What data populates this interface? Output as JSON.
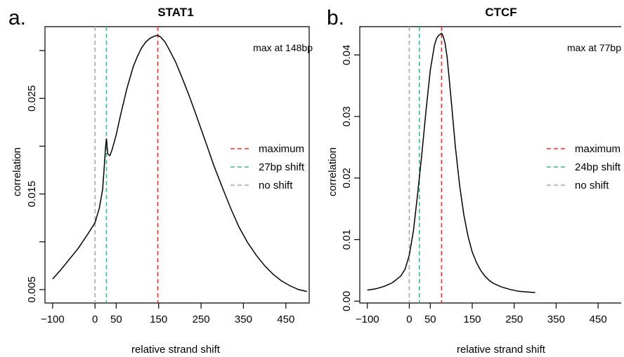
{
  "colors": {
    "maximum": "#e8302a",
    "shift": "#3cba8c",
    "noshift": "#a8a8a8",
    "curve": "#000000"
  },
  "chart_data": [
    {
      "panel_label": "a.",
      "type": "line",
      "title": "STAT1",
      "xlabel": "relative strand shift",
      "ylabel": "correlation",
      "annotation": "max at 148bp",
      "xlim": [
        -118,
        505
      ],
      "ylim": [
        0.0036,
        0.0325
      ],
      "xticks": [
        -100,
        0,
        50,
        150,
        250,
        350,
        450
      ],
      "yticks": [
        0.005,
        0.015,
        0.025
      ],
      "yticks_minor": [
        0.01,
        0.02,
        0.03
      ],
      "vlines": {
        "maximum": 148,
        "shift": 27,
        "noshift": 0
      },
      "legend": {
        "position": "right",
        "maximum": "maximum",
        "shift": "27bp shift",
        "noshift": "no shift"
      },
      "series": [
        {
          "x": [
            -100,
            -80,
            -60,
            -40,
            -20,
            0,
            10,
            18,
            22,
            25,
            27,
            30,
            35,
            40,
            50,
            60,
            75,
            90,
            100,
            110,
            120,
            130,
            140,
            148,
            155,
            165,
            175,
            190,
            205,
            220,
            235,
            250,
            265,
            280,
            300,
            320,
            340,
            360,
            380,
            400,
            420,
            440,
            460,
            480,
            500
          ],
          "y": [
            0.0061,
            0.0071,
            0.0082,
            0.0093,
            0.0106,
            0.012,
            0.0135,
            0.0155,
            0.018,
            0.02,
            0.0208,
            0.0192,
            0.019,
            0.0196,
            0.0212,
            0.0232,
            0.026,
            0.0283,
            0.0294,
            0.0303,
            0.0309,
            0.0313,
            0.0315,
            0.0316,
            0.0314,
            0.0309,
            0.0301,
            0.0288,
            0.0272,
            0.0255,
            0.0237,
            0.0218,
            0.0199,
            0.018,
            0.0157,
            0.0135,
            0.0115,
            0.0099,
            0.0086,
            0.0075,
            0.0066,
            0.0059,
            0.0054,
            0.005,
            0.0048
          ]
        }
      ]
    },
    {
      "panel_label": "b.",
      "type": "line",
      "title": "CTCF",
      "xlabel": "relative strand shift",
      "ylabel": "correlation",
      "annotation": "max at 77bp",
      "xlim": [
        -118,
        505
      ],
      "ylim": [
        -0.0003,
        0.0446
      ],
      "xticks": [
        -100,
        0,
        50,
        150,
        250,
        350,
        450
      ],
      "yticks": [
        0.0,
        0.01,
        0.02,
        0.03,
        0.04
      ],
      "vlines": {
        "maximum": 77,
        "shift": 24,
        "noshift": 0
      },
      "legend": {
        "position": "right",
        "maximum": "maximum",
        "shift": "24bp shift",
        "noshift": "no shift"
      },
      "series": [
        {
          "x": [
            -100,
            -80,
            -60,
            -40,
            -20,
            -10,
            0,
            10,
            20,
            30,
            40,
            50,
            60,
            65,
            70,
            75,
            77,
            80,
            85,
            90,
            95,
            100,
            110,
            120,
            130,
            140,
            150,
            160,
            170,
            180,
            190,
            200,
            220,
            240,
            260,
            280,
            300
          ],
          "y": [
            0.0018,
            0.002,
            0.0024,
            0.003,
            0.0041,
            0.0052,
            0.0075,
            0.0115,
            0.0175,
            0.024,
            0.031,
            0.0375,
            0.0416,
            0.0427,
            0.0432,
            0.0434,
            0.0435,
            0.0432,
            0.042,
            0.0397,
            0.0362,
            0.0325,
            0.025,
            0.0188,
            0.014,
            0.0105,
            0.008,
            0.0063,
            0.005,
            0.0041,
            0.0034,
            0.0029,
            0.0023,
            0.0019,
            0.0016,
            0.0015,
            0.0014
          ]
        }
      ]
    }
  ]
}
